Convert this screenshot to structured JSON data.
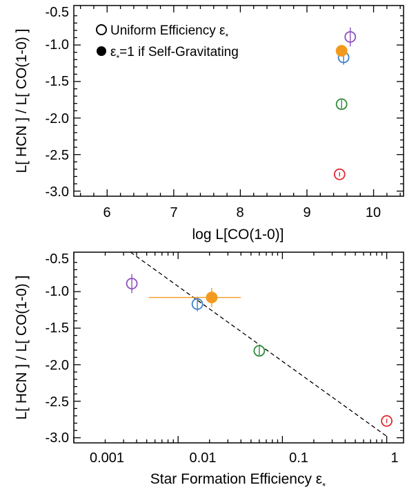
{
  "colors": {
    "purple": "#8a4fc0",
    "orange": "#f39a1e",
    "blue": "#3f7fc8",
    "green": "#2f8a3a",
    "red": "#e0262e"
  },
  "chart_data": [
    {
      "type": "scatter",
      "xlabel": "log L[CO(1-0)]",
      "ylabel": "L[ HCN ] / L[ CO(1-0) ]",
      "xlim": [
        5.5,
        10.45
      ],
      "ylim": [
        -3.07,
        -0.46
      ],
      "x_ticks": [
        "6",
        "7",
        "8",
        "9",
        "10"
      ],
      "y_ticks": [
        "-0.5",
        "-1.0",
        "-1.5",
        "-2.0",
        "-2.5",
        "-3.0"
      ],
      "legend": {
        "placement": "top-left",
        "entries": [
          {
            "marker": "open-circle",
            "label": "Uniform Efficiency ε",
            "sub": "*"
          },
          {
            "marker": "filled-circle",
            "label": "ε",
            "sub": "*",
            "label_after": "=1 if Self-Gravitating"
          }
        ]
      },
      "series": [
        {
          "marker": "open",
          "color": "purple",
          "points": [
            {
              "x": 9.65,
              "y": -0.89,
              "yerr": 0.13
            }
          ]
        },
        {
          "marker": "open",
          "color": "blue",
          "points": [
            {
              "x": 9.55,
              "y": -1.17,
              "yerr": 0.1
            }
          ]
        },
        {
          "marker": "filled",
          "color": "orange",
          "points": [
            {
              "x": 9.52,
              "y": -1.08,
              "yerr": 0.0
            }
          ]
        },
        {
          "marker": "open",
          "color": "green",
          "points": [
            {
              "x": 9.52,
              "y": -1.81,
              "yerr": 0.06
            }
          ]
        },
        {
          "marker": "open",
          "color": "red",
          "points": [
            {
              "x": 9.49,
              "y": -2.77,
              "yerr": 0.03
            }
          ]
        }
      ]
    },
    {
      "type": "scatter",
      "x_scale": "log",
      "xlabel": "Star Formation Efficiency ε",
      "xlabel_sub": "*",
      "ylabel": "L[ HCN ] / L[ CO(1-0) ]",
      "xlim": [
        0.001,
        1.45
      ],
      "ylim": [
        -3.07,
        -0.46
      ],
      "x_ticks": [
        "0.001",
        "0.01",
        "0.1",
        "1"
      ],
      "y_ticks": [
        "-0.5",
        "-1.0",
        "-1.5",
        "-2.0",
        "-2.5",
        "-3.0"
      ],
      "fit_line": {
        "style": "dashed",
        "points": [
          {
            "x": 0.0035,
            "y": -0.46
          },
          {
            "x": 1.0,
            "y": -2.98
          }
        ]
      },
      "series": [
        {
          "marker": "open",
          "color": "purple",
          "points": [
            {
              "x": 0.0036,
              "y": -0.89,
              "yerr": 0.13
            }
          ]
        },
        {
          "marker": "open",
          "color": "blue",
          "points": [
            {
              "x": 0.0153,
              "y": -1.17,
              "yerr": 0.1
            }
          ]
        },
        {
          "marker": "filled",
          "color": "orange",
          "points": [
            {
              "x": 0.021,
              "y": -1.08,
              "yerr": 0.13,
              "xerr_low": 0.0052,
              "xerr_high": 0.04
            }
          ]
        },
        {
          "marker": "open",
          "color": "green",
          "points": [
            {
              "x": 0.06,
              "y": -1.81,
              "yerr": 0.06
            }
          ]
        },
        {
          "marker": "open",
          "color": "red",
          "points": [
            {
              "x": 1.0,
              "y": -2.77,
              "yerr": 0.03
            }
          ]
        }
      ]
    }
  ]
}
